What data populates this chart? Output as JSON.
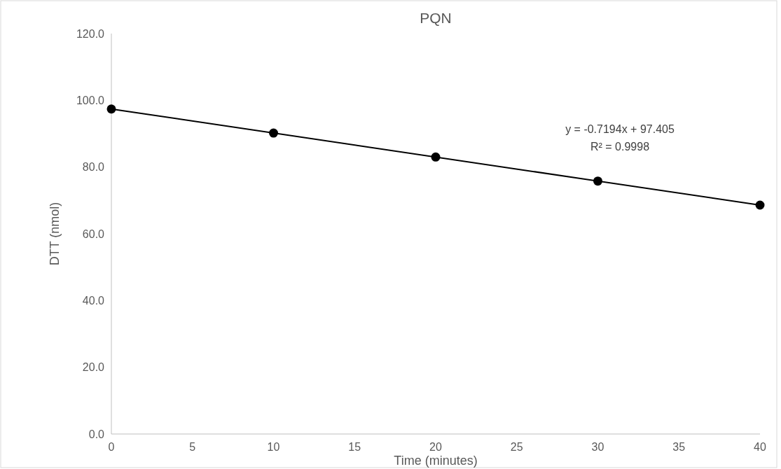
{
  "chart_data": {
    "type": "scatter",
    "title": "PQN",
    "xlabel": "Time (minutes)",
    "ylabel": "DTT (nmol)",
    "xlim": [
      0,
      40
    ],
    "xticks": [
      0,
      5,
      10,
      15,
      20,
      25,
      30,
      35,
      40
    ],
    "ylim": [
      0,
      120
    ],
    "yticks": [
      {
        "value": 0,
        "label": "0.0"
      },
      {
        "value": 20,
        "label": "20.0"
      },
      {
        "value": 40,
        "label": "40.0"
      },
      {
        "value": 60,
        "label": "60.0"
      },
      {
        "value": 80,
        "label": "80.0"
      },
      {
        "value": 100,
        "label": "100.0"
      },
      {
        "value": 120,
        "label": "120.0"
      }
    ],
    "series": [
      {
        "color": "#000000",
        "x": [
          0,
          10,
          20,
          30,
          40
        ],
        "values": [
          97.4,
          90.2,
          83.0,
          75.8,
          68.6
        ],
        "marker": "circle"
      },
      {
        "type": "line",
        "color": "#000000",
        "x": [
          0,
          40
        ],
        "values": [
          97.4,
          68.6
        ],
        "marker": "none",
        "line_style": "solid"
      }
    ],
    "annotations": [
      "y = -0.7194x + 97.405",
      "R² = 0.9998"
    ],
    "grid": false
  }
}
